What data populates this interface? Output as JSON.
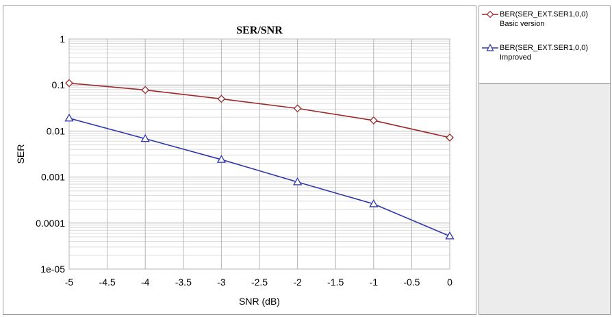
{
  "chart_data": {
    "type": "line",
    "title": "SER/SNR",
    "xlabel": "SNR (dB)",
    "ylabel": "SER",
    "x_scale": "linear",
    "y_scale": "log",
    "xlim": [
      -5,
      0
    ],
    "ylim": [
      1e-05,
      1
    ],
    "x_ticks": [
      -5,
      -4.5,
      -4,
      -3.5,
      -3,
      -2.5,
      -2,
      -1.5,
      -1,
      -0.5,
      0
    ],
    "x_tick_labels": [
      "-5",
      "-4.5",
      "-4",
      "-3.5",
      "-3",
      "-2.5",
      "-2",
      "-1.5",
      "-1",
      "-0.5",
      "0"
    ],
    "y_ticks": [
      1,
      0.1,
      0.01,
      0.001,
      0.0001,
      1e-05
    ],
    "y_tick_labels": [
      "1",
      "0.1",
      "0.01",
      "0.001",
      "0.0001",
      "1e-05"
    ],
    "grid": true,
    "legend_position": "right",
    "x": [
      -5,
      -4,
      -3,
      -2,
      -1,
      0
    ],
    "series": [
      {
        "name": "BER(SER_EXT.SER1,0,0)",
        "subtitle": "Basic version",
        "marker": "diamond",
        "color": "#9b2a2a",
        "values": [
          0.11,
          0.078,
          0.05,
          0.031,
          0.017,
          0.0072
        ]
      },
      {
        "name": "BER(SER_EXT.SER1,0,0)",
        "subtitle": "Improved",
        "marker": "triangle",
        "color": "#2e36a8",
        "values": [
          0.019,
          0.0068,
          0.0024,
          0.00078,
          0.00026,
          5.2e-05
        ]
      }
    ]
  }
}
